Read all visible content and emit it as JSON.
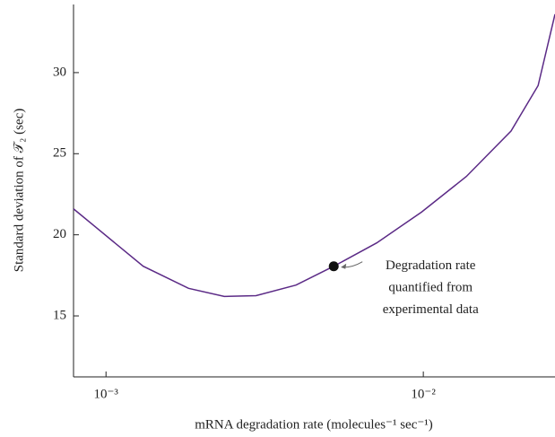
{
  "chart_data": {
    "type": "line",
    "x_label": "mRNA degradation rate (molecules⁻¹ sec⁻¹)",
    "y_label": "Standard deviation of 𝒯₂ (sec)",
    "xscale": "log",
    "xlim": [
      0.00079,
      0.026
    ],
    "ylim": [
      11.24,
      34.2
    ],
    "xticks": [
      {
        "value": 0.001,
        "label": "10⁻³"
      },
      {
        "value": 0.01,
        "label": "10⁻²"
      }
    ],
    "yticks": [
      15,
      20,
      25,
      30
    ],
    "grid": false,
    "series": [
      {
        "color": "#5b2a86",
        "x": [
          0.00079,
          0.00131,
          0.00182,
          0.00236,
          0.00297,
          0.00397,
          0.00522,
          0.00713,
          0.00987,
          0.01367,
          0.0189,
          0.023,
          0.026
        ],
        "values": [
          21.6,
          18.06,
          16.7,
          16.2,
          16.25,
          16.9,
          18.06,
          19.5,
          21.4,
          23.6,
          26.4,
          29.2,
          33.6
        ]
      }
    ],
    "highlight": {
      "x": 0.00522,
      "y": 18.06,
      "color": "#111111",
      "annotation": [
        "Degradation rate",
        "quantified from",
        "experimental data"
      ]
    }
  }
}
